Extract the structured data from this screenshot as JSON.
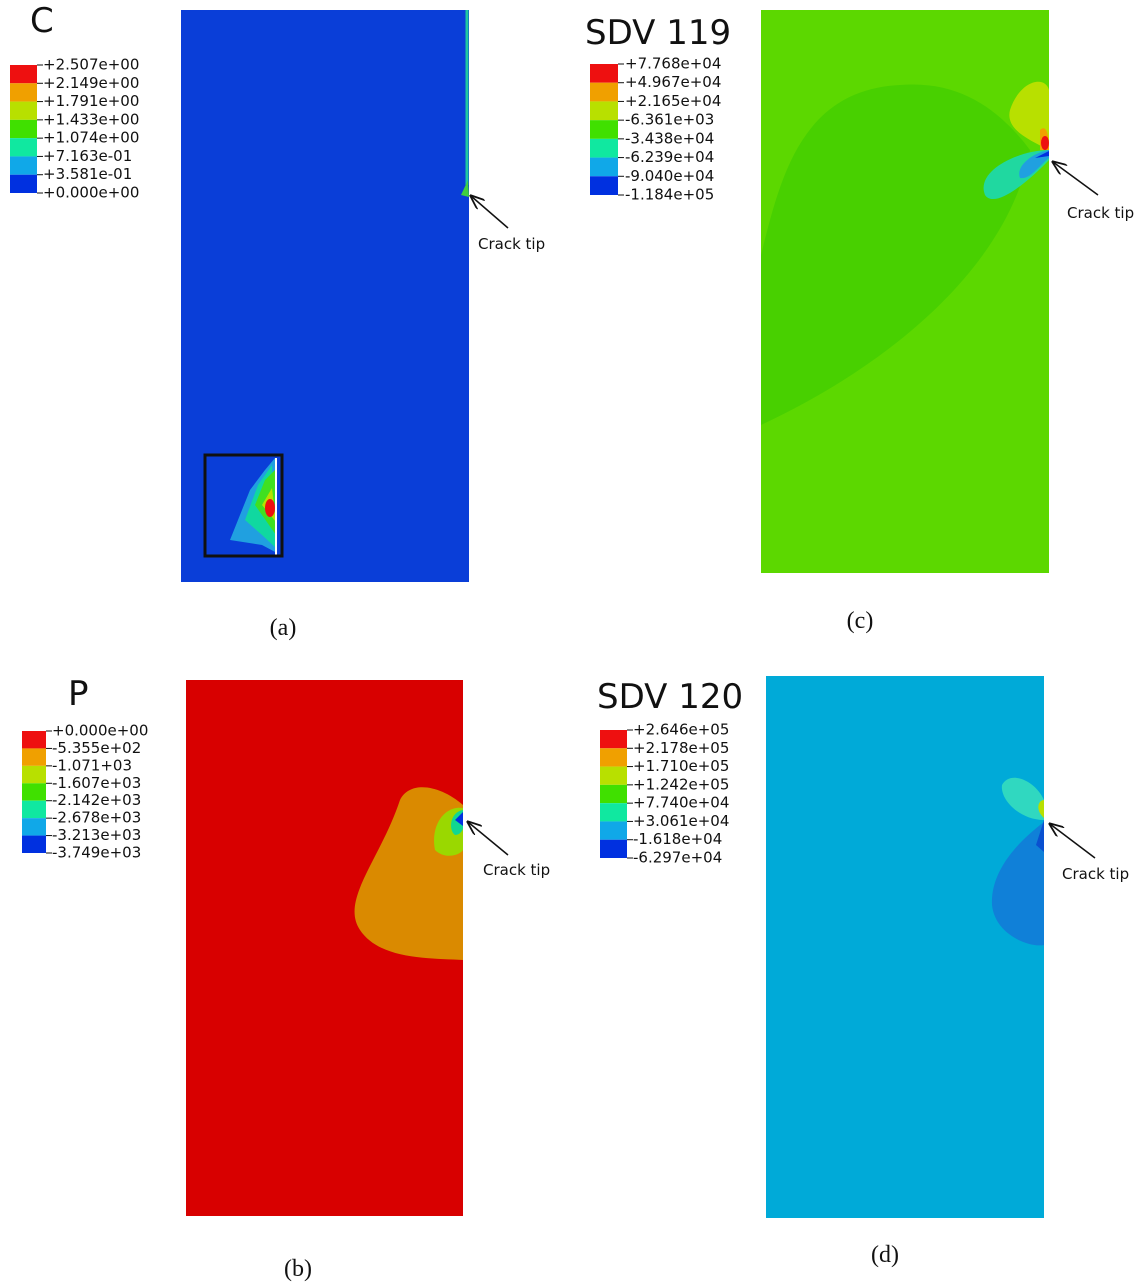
{
  "panels": [
    {
      "legend_title": "C",
      "caption": "(a)",
      "annotation": "Crack tip",
      "legend_labels": [
        "+2.507e+00",
        "+2.149e+00",
        "+1.791e+00",
        "+1.433e+00",
        "+1.074e+00",
        "+7.163e-01",
        "+3.581e-01",
        "+0.000e+00"
      ]
    },
    {
      "legend_title": "SDV 119",
      "caption": "(c)",
      "annotation": "Crack tip",
      "legend_labels": [
        "+7.768e+04",
        "+4.967e+04",
        "+2.165e+04",
        "-6.361e+03",
        "-3.438e+04",
        "-6.239e+04",
        "-9.040e+04",
        "-1.184e+05"
      ]
    },
    {
      "legend_title": "P",
      "caption": "(b)",
      "annotation": "Crack tip",
      "legend_labels": [
        "+0.000e+00",
        "-5.355e+02",
        "-1.071+03",
        "-1.607e+03",
        "-2.142e+03",
        "-2.678e+03",
        "-3.213e+03",
        "-3.749e+03"
      ]
    },
    {
      "legend_title": "SDV 120",
      "caption": "(d)",
      "annotation": "Crack tip",
      "legend_labels": [
        "+2.646e+05",
        "+2.178e+05",
        "+1.710e+05",
        "+1.242e+05",
        "+7.740e+04",
        "+3.061e+04",
        "-1.618e+04",
        "-6.297e+04"
      ]
    }
  ]
}
